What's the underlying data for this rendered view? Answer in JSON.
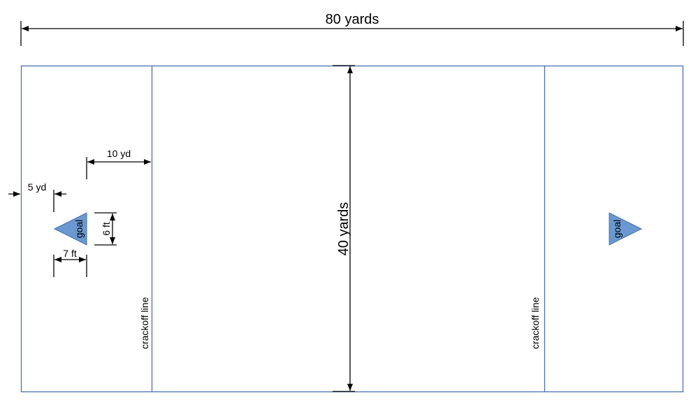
{
  "labels": {
    "field_length": "80 yards",
    "field_width": "40 yards",
    "crackoff_left": "crackoff line",
    "crackoff_right": "crackoff line",
    "goal_left": "goal",
    "goal_right": "goal",
    "goal_offset": "5 yd",
    "crackoff_offset": "10 yd",
    "goal_height": "6 ft",
    "goal_width": "7 ft"
  },
  "colors": {
    "field_line": "#4a72b0",
    "goal_fill": "#6a98d0",
    "goal_stroke": "#3f6fab",
    "dimension": "#000000"
  }
}
